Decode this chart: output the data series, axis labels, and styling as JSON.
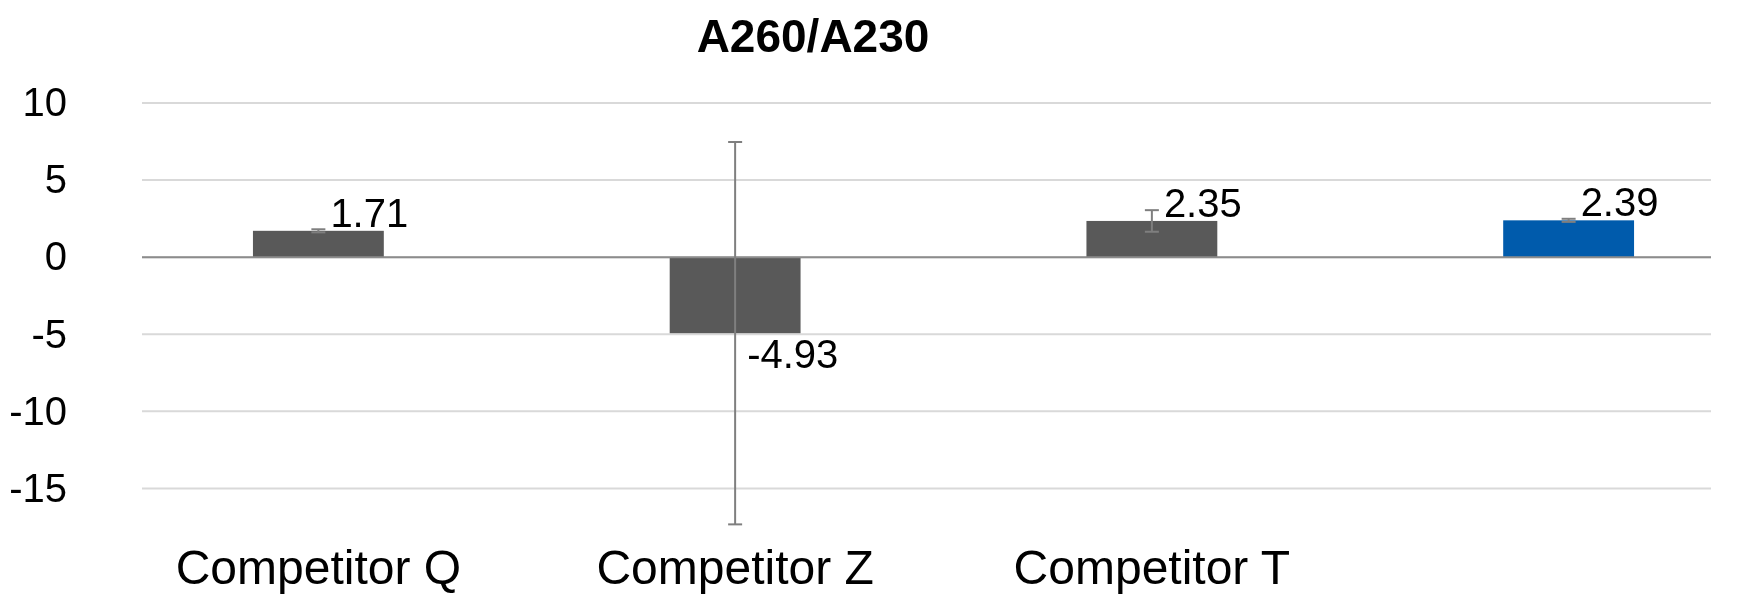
{
  "chart_data": {
    "type": "bar",
    "title": "A260/A230",
    "categories": [
      "Competitor Q",
      "Competitor Z",
      "Competitor T",
      null
    ],
    "values": [
      1.71,
      -4.93,
      2.35,
      2.39
    ],
    "colors": [
      "#595959",
      "#595959",
      "#595959",
      "#005bac"
    ],
    "errors": [
      0.1,
      12.4,
      0.7,
      0.1
    ],
    "ylim": [
      -17.5,
      10
    ],
    "yticks": [
      -15,
      -10,
      -5,
      0,
      5,
      10
    ],
    "grid": "y",
    "data_labels": true
  }
}
